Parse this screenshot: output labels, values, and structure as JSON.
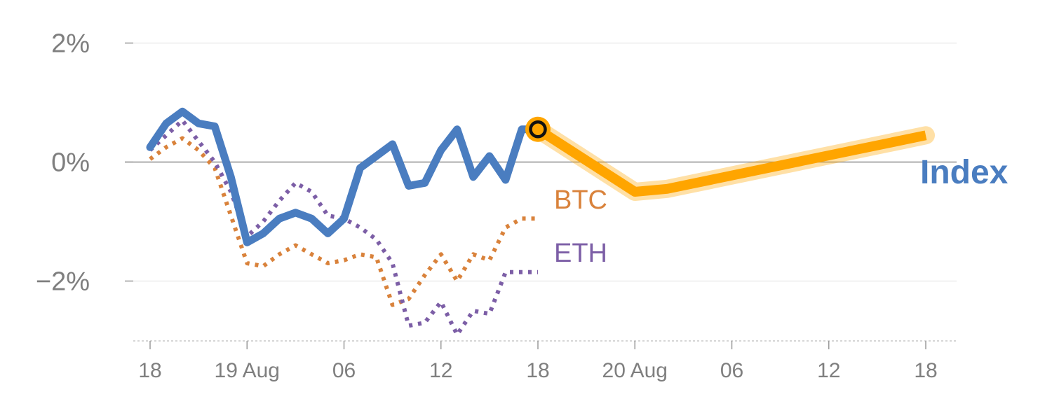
{
  "chart_data": {
    "type": "line",
    "x_unit": "hours",
    "yticks": [
      {
        "value": 2,
        "label": "2%"
      },
      {
        "value": 0,
        "label": "0%"
      },
      {
        "value": -2,
        "label": "−2%"
      }
    ],
    "xticks": [
      {
        "value": 0,
        "label": "18"
      },
      {
        "value": 6,
        "label": "19 Aug"
      },
      {
        "value": 12,
        "label": "06"
      },
      {
        "value": 18,
        "label": "12"
      },
      {
        "value": 24,
        "label": "18"
      },
      {
        "value": 30,
        "label": "20 Aug"
      },
      {
        "value": 36,
        "label": "06"
      },
      {
        "value": 42,
        "label": "12"
      },
      {
        "value": 48,
        "label": "18"
      }
    ],
    "xlim": [
      -1,
      50
    ],
    "ylim": [
      -3,
      2.1
    ],
    "series": [
      {
        "name": "BTC",
        "color": "#d9823b",
        "style": "dotted",
        "x": [
          0,
          1,
          2,
          3,
          4,
          5,
          6,
          7,
          8,
          9,
          10,
          11,
          12,
          13,
          14,
          15,
          16,
          17,
          18,
          19,
          20,
          21,
          22,
          23,
          24
        ],
        "y": [
          0.05,
          0.25,
          0.4,
          0.2,
          -0.1,
          -0.9,
          -1.7,
          -1.75,
          -1.55,
          -1.4,
          -1.55,
          -1.7,
          -1.65,
          -1.55,
          -1.6,
          -2.4,
          -2.3,
          -1.9,
          -1.55,
          -2.0,
          -1.55,
          -1.65,
          -1.1,
          -0.95,
          -0.95
        ]
      },
      {
        "name": "ETH",
        "color": "#7c5ea6",
        "style": "dotted",
        "x": [
          0,
          1,
          2,
          3,
          4,
          5,
          6,
          7,
          8,
          9,
          10,
          11,
          12,
          13,
          14,
          15,
          16,
          17,
          18,
          19,
          20,
          21,
          22,
          23,
          24
        ],
        "y": [
          0.2,
          0.45,
          0.7,
          0.35,
          0.0,
          -0.5,
          -1.25,
          -1.0,
          -0.65,
          -0.35,
          -0.5,
          -0.9,
          -0.95,
          -1.1,
          -1.3,
          -1.7,
          -2.75,
          -2.7,
          -2.35,
          -2.9,
          -2.5,
          -2.55,
          -1.85,
          -1.85,
          -1.85
        ]
      },
      {
        "name": "Index",
        "color": "#4a7dc0",
        "style": "solid",
        "x": [
          0,
          1,
          2,
          3,
          4,
          5,
          6,
          7,
          8,
          9,
          10,
          11,
          12,
          13,
          14,
          15,
          16,
          17,
          18,
          19,
          20,
          21,
          22,
          23,
          24
        ],
        "y": [
          0.25,
          0.65,
          0.85,
          0.65,
          0.6,
          -0.25,
          -1.35,
          -1.2,
          -0.95,
          -0.85,
          -0.95,
          -1.2,
          -0.95,
          -0.1,
          0.1,
          0.3,
          -0.4,
          -0.35,
          0.2,
          0.55,
          -0.25,
          0.1,
          -0.3,
          0.55,
          0.55
        ]
      },
      {
        "name": "Index",
        "color": "#ffa500",
        "style": "forecast",
        "x": [
          24,
          30,
          32,
          48
        ],
        "y": [
          0.55,
          -0.5,
          -0.45,
          0.45
        ]
      }
    ],
    "annotations": [
      {
        "label": "BTC",
        "color": "#d9823b"
      },
      {
        "label": "ETH",
        "color": "#7c5ea6"
      },
      {
        "label": "Index",
        "color": "#4a7dc0"
      }
    ],
    "marker": {
      "x": 24,
      "y": 0.55,
      "color": "#ffa500"
    },
    "grid": true
  }
}
